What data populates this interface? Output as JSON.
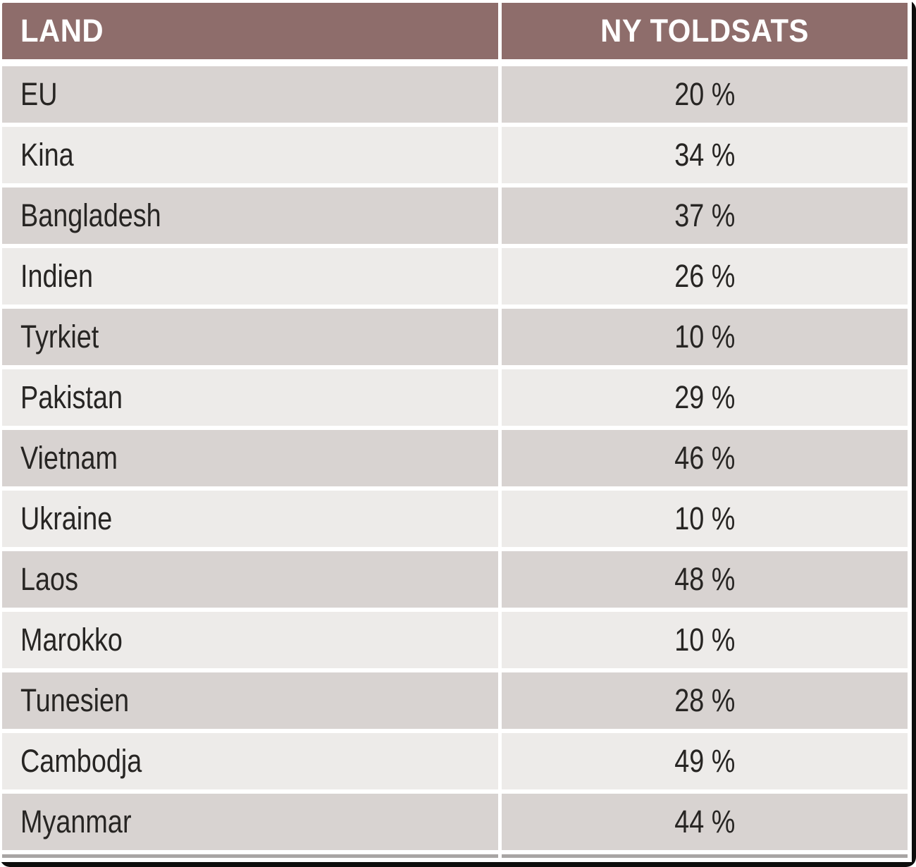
{
  "theme": {
    "header-bg": "#8e6d6b",
    "header-text": "#ffffff",
    "row-dark": "#d8d3d1",
    "row-light": "#edebe9",
    "body-text": "#272523",
    "gap-white": "#ffffff",
    "edge-gray": "#a8a5a4",
    "edge-black": "#0d0d0c"
  },
  "table": {
    "columns": [
      {
        "label": "LAND"
      },
      {
        "label": "NY TOLDSATS"
      }
    ],
    "rows": [
      {
        "land": "EU",
        "rate": "20 %"
      },
      {
        "land": "Kina",
        "rate": "34 %"
      },
      {
        "land": "Bangladesh",
        "rate": "37 %"
      },
      {
        "land": "Indien",
        "rate": "26 %"
      },
      {
        "land": "Tyrkiet",
        "rate": "10 %"
      },
      {
        "land": "Pakistan",
        "rate": "29 %"
      },
      {
        "land": "Vietnam",
        "rate": "46 %"
      },
      {
        "land": "Ukraine",
        "rate": "10 %"
      },
      {
        "land": "Laos",
        "rate": "48 %"
      },
      {
        "land": "Marokko",
        "rate": "10 %"
      },
      {
        "land": "Tunesien",
        "rate": "28 %"
      },
      {
        "land": "Cambodja",
        "rate": "49 %"
      },
      {
        "land": "Myanmar",
        "rate": "44 %"
      }
    ]
  },
  "chart_data": {
    "type": "table",
    "title": "",
    "columns": [
      "LAND",
      "NY TOLDSATS"
    ],
    "categories": [
      "EU",
      "Kina",
      "Bangladesh",
      "Indien",
      "Tyrkiet",
      "Pakistan",
      "Vietnam",
      "Ukraine",
      "Laos",
      "Marokko",
      "Tunesien",
      "Cambodja",
      "Myanmar"
    ],
    "values": [
      20,
      34,
      37,
      26,
      10,
      29,
      46,
      10,
      48,
      10,
      28,
      49,
      44
    ],
    "value_unit": "%",
    "rows": [
      [
        "EU",
        "20 %"
      ],
      [
        "Kina",
        "34 %"
      ],
      [
        "Bangladesh",
        "37 %"
      ],
      [
        "Indien",
        "26 %"
      ],
      [
        "Tyrkiet",
        "10 %"
      ],
      [
        "Pakistan",
        "29 %"
      ],
      [
        "Vietnam",
        "46 %"
      ],
      [
        "Ukraine",
        "10 %"
      ],
      [
        "Laos",
        "48 %"
      ],
      [
        "Marokko",
        "10 %"
      ],
      [
        "Tunesien",
        "28 %"
      ],
      [
        "Cambodja",
        "49 %"
      ],
      [
        "Myanmar",
        "44 %"
      ]
    ],
    "layout_hints": {
      "header_bg": "#8e6d6b",
      "alternating_rows": true,
      "first_data_row_shade": "dark",
      "value_alignment": "center",
      "label_alignment": "left"
    }
  }
}
